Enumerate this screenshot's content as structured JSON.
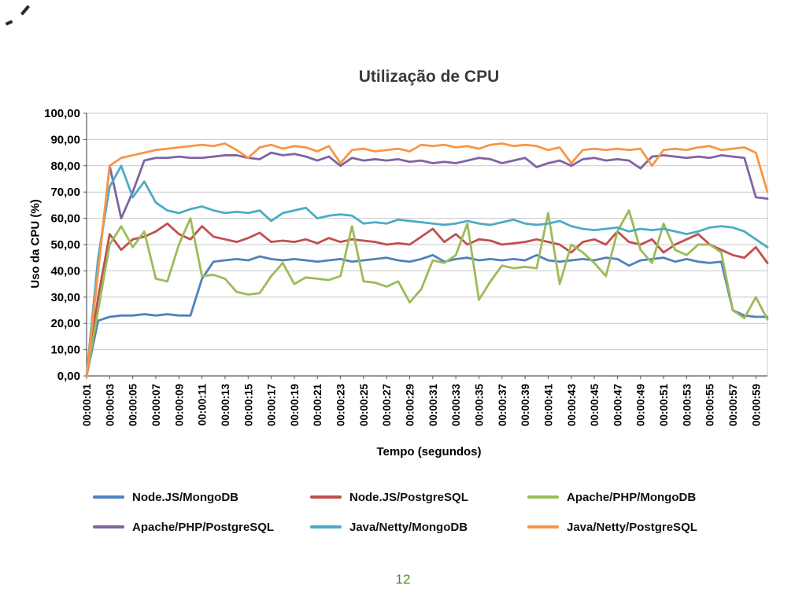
{
  "page": {
    "number": "12"
  },
  "chart_data": {
    "type": "line",
    "title": "Utilização de CPU",
    "xlabel": "Tempo (segundos)",
    "ylabel": "Uso da CPU (%)",
    "ylim": [
      0,
      100
    ],
    "ytick_step": 10,
    "grid": true,
    "legend_position": "bottom",
    "ytick_labels": [
      "0,00",
      "10,00",
      "20,00",
      "30,00",
      "40,00",
      "50,00",
      "60,00",
      "70,00",
      "80,00",
      "90,00",
      "100,00"
    ],
    "xtick_labels": [
      "00:00:01",
      "00:00:03",
      "00:00:05",
      "00:00:07",
      "00:00:09",
      "00:00:11",
      "00:00:13",
      "00:00:15",
      "00:00:17",
      "00:00:19",
      "00:00:21",
      "00:00:23",
      "00:00:25",
      "00:00:27",
      "00:00:29",
      "00:00:31",
      "00:00:33",
      "00:00:35",
      "00:00:37",
      "00:00:39",
      "00:00:41",
      "00:00:43",
      "00:00:45",
      "00:00:47",
      "00:00:49",
      "00:00:51",
      "00:00:53",
      "00:00:55",
      "00:00:57",
      "00:00:59"
    ],
    "x_unit": "seconds (1 to 60, 1s interval)",
    "series": [
      {
        "name": "Node.JS/MongoDB",
        "color": "#4F81BD",
        "values": [
          0,
          21,
          22.5,
          23,
          23,
          23.5,
          23,
          23.5,
          23,
          23,
          37,
          43.5,
          44,
          44.5,
          44,
          45.5,
          44.5,
          44,
          44.5,
          44,
          43.5,
          44,
          44.5,
          43.5,
          44,
          44.5,
          45,
          44,
          43.5,
          44.5,
          46,
          43.5,
          44.5,
          45,
          44,
          44.5,
          44,
          44.5,
          44,
          46,
          44,
          43.5,
          44,
          44.5,
          44,
          45,
          44.5,
          42,
          44,
          44.5,
          45,
          43.5,
          44.5,
          43.5,
          43,
          43.5,
          25,
          23,
          22.5,
          22.5
        ]
      },
      {
        "name": "Node.JS/PostgreSQL",
        "color": "#C0504D",
        "values": [
          0,
          30,
          54,
          48,
          52,
          53,
          55,
          58,
          54,
          52,
          57,
          53,
          52,
          51,
          52.5,
          54.5,
          51,
          51.5,
          51,
          52,
          50.5,
          52.5,
          51,
          52,
          51.5,
          51,
          50,
          50.5,
          50,
          53,
          56,
          51,
          54,
          50,
          52,
          51.5,
          50,
          50.5,
          51,
          52,
          51,
          50,
          47,
          51,
          52,
          50,
          55,
          51,
          50,
          52,
          47,
          50,
          52,
          54,
          50,
          48,
          46,
          45,
          49,
          43
        ]
      },
      {
        "name": "Apache/PHP/MongoDB",
        "color": "#9BBB59",
        "values": [
          0,
          25,
          50,
          57,
          49,
          55,
          37,
          36,
          50,
          60,
          38,
          38.5,
          37,
          32,
          31,
          31.5,
          38,
          43,
          35,
          37.5,
          37,
          36.5,
          38,
          57,
          36,
          35.5,
          34,
          36,
          28,
          33,
          44,
          43,
          46,
          58,
          29,
          36,
          42,
          41,
          41.5,
          41,
          62,
          35,
          50,
          47,
          43,
          38,
          55,
          63,
          48,
          43,
          58,
          48,
          46,
          50,
          50,
          47,
          25,
          22,
          30,
          21.5
        ]
      },
      {
        "name": "Apache/PHP/PostgreSQL",
        "color": "#8064A2",
        "values": [
          0,
          40,
          80,
          60,
          70,
          82,
          83,
          83,
          83.5,
          83,
          83,
          83.5,
          84,
          84,
          83,
          82.5,
          85,
          84,
          84.5,
          83.5,
          82,
          83.5,
          80,
          83,
          82,
          82.5,
          82,
          82.5,
          81.5,
          82,
          81,
          81.5,
          81,
          82,
          83,
          82.5,
          81,
          82,
          83,
          79.5,
          81,
          82,
          80,
          82.5,
          83,
          82,
          82.5,
          82,
          79,
          83.5,
          84,
          83.5,
          83,
          83.5,
          83,
          84,
          83.5,
          83,
          68,
          67.5
        ]
      },
      {
        "name": "Java/Netty/MongoDB",
        "color": "#4BACC6",
        "values": [
          0,
          45,
          72,
          80,
          68,
          74,
          66,
          63,
          62,
          63.5,
          64.5,
          63,
          62,
          62.5,
          62,
          63,
          59,
          62,
          63,
          64,
          60,
          61,
          61.5,
          61,
          58,
          58.5,
          58,
          59.5,
          59,
          58.5,
          58,
          57.5,
          58,
          59,
          58,
          57.5,
          58.5,
          59.5,
          58,
          57.5,
          58,
          59,
          57,
          56,
          55.5,
          56,
          56.5,
          55,
          56,
          55.5,
          56,
          55,
          54,
          55,
          56.5,
          57,
          56.5,
          55,
          52,
          49
        ]
      },
      {
        "name": "Java/Netty/PostgreSQL",
        "color": "#F79646",
        "values": [
          0,
          40,
          80,
          83,
          84,
          85,
          86,
          86.5,
          87,
          87.5,
          88,
          87.5,
          88.5,
          86,
          83,
          87,
          88,
          86.5,
          87.5,
          87,
          85.5,
          87.5,
          81,
          86,
          86.5,
          85.5,
          86,
          86.5,
          85.5,
          88,
          87.5,
          88,
          87,
          87.5,
          86.5,
          88,
          88.5,
          87.5,
          88,
          87.5,
          86,
          87,
          81,
          86,
          86.5,
          86,
          86.5,
          86,
          86.5,
          80,
          86,
          86.5,
          86,
          87,
          87.5,
          86,
          86.5,
          87,
          85,
          70
        ]
      }
    ]
  }
}
